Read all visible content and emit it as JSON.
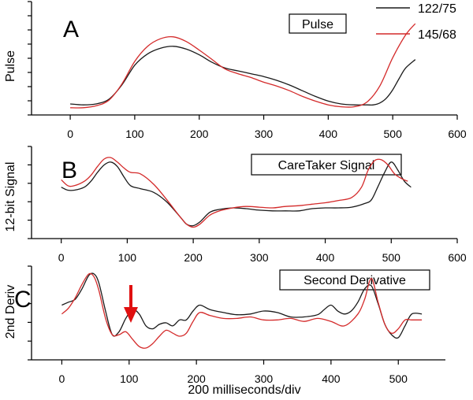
{
  "colors": {
    "series_122_75": "#1a1a1a",
    "series_145_68": "#d42a2a",
    "arrow": "#e01010"
  },
  "legend": {
    "entries": [
      "122/75",
      "145/68"
    ]
  },
  "xlabel": "200 milliseconds/div",
  "chart_data": [
    {
      "type": "line",
      "panel": "A",
      "annotation": "Pulse",
      "ylabel": "Pulse",
      "xlim": [
        -60,
        600
      ],
      "xticks": [
        0,
        100,
        200,
        300,
        400,
        500,
        600
      ],
      "ylim": [
        0,
        1
      ],
      "series": [
        {
          "name": "122/75",
          "x": [
            0,
            20,
            40,
            60,
            80,
            100,
            120,
            140,
            160,
            180,
            200,
            220,
            240,
            260,
            280,
            300,
            320,
            340,
            360,
            380,
            400,
            420,
            440,
            460,
            470,
            480,
            490,
            500,
            510,
            520,
            535
          ],
          "values": [
            0.05,
            0.04,
            0.05,
            0.1,
            0.25,
            0.46,
            0.58,
            0.64,
            0.66,
            0.63,
            0.57,
            0.49,
            0.43,
            0.4,
            0.37,
            0.34,
            0.3,
            0.25,
            0.19,
            0.13,
            0.08,
            0.05,
            0.04,
            0.04,
            0.04,
            0.06,
            0.11,
            0.2,
            0.32,
            0.43,
            0.52
          ]
        },
        {
          "name": "145/68",
          "x": [
            0,
            20,
            40,
            60,
            80,
            100,
            120,
            140,
            160,
            180,
            200,
            220,
            240,
            260,
            280,
            300,
            320,
            340,
            360,
            380,
            400,
            420,
            440,
            460,
            480,
            500,
            520,
            535
          ],
          "values": [
            0.01,
            0.01,
            0.03,
            0.09,
            0.26,
            0.5,
            0.66,
            0.74,
            0.76,
            0.71,
            0.62,
            0.52,
            0.42,
            0.37,
            0.33,
            0.28,
            0.24,
            0.19,
            0.13,
            0.08,
            0.04,
            0.02,
            0.02,
            0.07,
            0.24,
            0.54,
            0.78,
            0.9
          ]
        }
      ]
    },
    {
      "type": "line",
      "panel": "B",
      "annotation": "CareTaker Signal",
      "ylabel": "12-bit Signal",
      "xlim": [
        -45,
        600
      ],
      "xticks": [
        0,
        100,
        200,
        300,
        400,
        500,
        600
      ],
      "ylim": [
        0,
        1
      ],
      "series": [
        {
          "name": "122/75",
          "x": [
            0,
            10,
            20,
            35,
            45,
            55,
            65,
            75,
            85,
            95,
            105,
            120,
            140,
            160,
            180,
            190,
            200,
            210,
            225,
            240,
            260,
            280,
            300,
            320,
            340,
            360,
            380,
            400,
            420,
            440,
            460,
            470,
            480,
            490,
            500,
            510,
            520,
            530
          ],
          "values": [
            0.62,
            0.58,
            0.58,
            0.62,
            0.7,
            0.82,
            0.92,
            0.96,
            0.9,
            0.76,
            0.64,
            0.6,
            0.55,
            0.42,
            0.22,
            0.12,
            0.1,
            0.15,
            0.28,
            0.32,
            0.34,
            0.33,
            0.31,
            0.3,
            0.3,
            0.3,
            0.33,
            0.34,
            0.34,
            0.35,
            0.4,
            0.45,
            0.63,
            0.82,
            0.96,
            0.85,
            0.7,
            0.62
          ]
        },
        {
          "name": "145/68",
          "x": [
            0,
            10,
            20,
            35,
            45,
            55,
            65,
            75,
            85,
            95,
            105,
            120,
            140,
            160,
            180,
            190,
            200,
            210,
            225,
            240,
            260,
            280,
            300,
            320,
            340,
            360,
            380,
            400,
            420,
            440,
            455,
            465,
            475,
            485,
            495,
            505,
            515,
            525
          ],
          "values": [
            0.72,
            0.64,
            0.64,
            0.7,
            0.78,
            0.9,
            1.0,
            1.02,
            0.96,
            0.88,
            0.82,
            0.8,
            0.66,
            0.45,
            0.22,
            0.12,
            0.08,
            0.12,
            0.24,
            0.3,
            0.34,
            0.36,
            0.35,
            0.34,
            0.36,
            0.37,
            0.39,
            0.41,
            0.44,
            0.48,
            0.62,
            0.85,
            0.98,
            0.99,
            0.92,
            0.8,
            0.74,
            0.7
          ]
        }
      ]
    },
    {
      "type": "line",
      "panel": "C",
      "annotation": "Second Derivative",
      "ylabel": "2nd Deriv",
      "xlim": [
        -45,
        570
      ],
      "xticks": [
        0,
        100,
        200,
        300,
        400,
        500
      ],
      "ylim": [
        0,
        1
      ],
      "series": [
        {
          "name": "122/75",
          "x": [
            0,
            10,
            20,
            30,
            40,
            48,
            55,
            65,
            75,
            85,
            95,
            105,
            115,
            125,
            135,
            145,
            155,
            165,
            175,
            185,
            195,
            205,
            220,
            240,
            260,
            280,
            300,
            320,
            340,
            360,
            380,
            390,
            400,
            410,
            420,
            430,
            440,
            450,
            460,
            470,
            480,
            490,
            500,
            510,
            520,
            535
          ],
          "values": [
            0.58,
            0.62,
            0.66,
            0.8,
            0.98,
            1.0,
            0.88,
            0.5,
            0.18,
            0.22,
            0.4,
            0.52,
            0.46,
            0.3,
            0.26,
            0.32,
            0.34,
            0.3,
            0.38,
            0.38,
            0.5,
            0.58,
            0.52,
            0.48,
            0.45,
            0.46,
            0.5,
            0.48,
            0.42,
            0.42,
            0.45,
            0.52,
            0.58,
            0.5,
            0.46,
            0.5,
            0.62,
            0.8,
            0.84,
            0.6,
            0.32,
            0.18,
            0.14,
            0.3,
            0.46,
            0.46
          ]
        },
        {
          "name": "145/68",
          "x": [
            0,
            10,
            20,
            30,
            40,
            48,
            55,
            65,
            75,
            85,
            95,
            105,
            115,
            125,
            135,
            145,
            155,
            165,
            175,
            185,
            195,
            205,
            220,
            240,
            260,
            280,
            300,
            320,
            340,
            360,
            380,
            400,
            420,
            440,
            450,
            460,
            470,
            480,
            490,
            500,
            510,
            520,
            535
          ],
          "values": [
            0.46,
            0.54,
            0.68,
            0.86,
            1.0,
            0.96,
            0.78,
            0.4,
            0.18,
            0.18,
            0.22,
            0.12,
            0.02,
            0.0,
            0.06,
            0.16,
            0.24,
            0.2,
            0.16,
            0.2,
            0.36,
            0.48,
            0.44,
            0.4,
            0.4,
            0.42,
            0.38,
            0.38,
            0.4,
            0.36,
            0.4,
            0.36,
            0.3,
            0.46,
            0.66,
            0.94,
            0.62,
            0.32,
            0.2,
            0.26,
            0.38,
            0.38,
            0.38
          ]
        }
      ]
    }
  ]
}
